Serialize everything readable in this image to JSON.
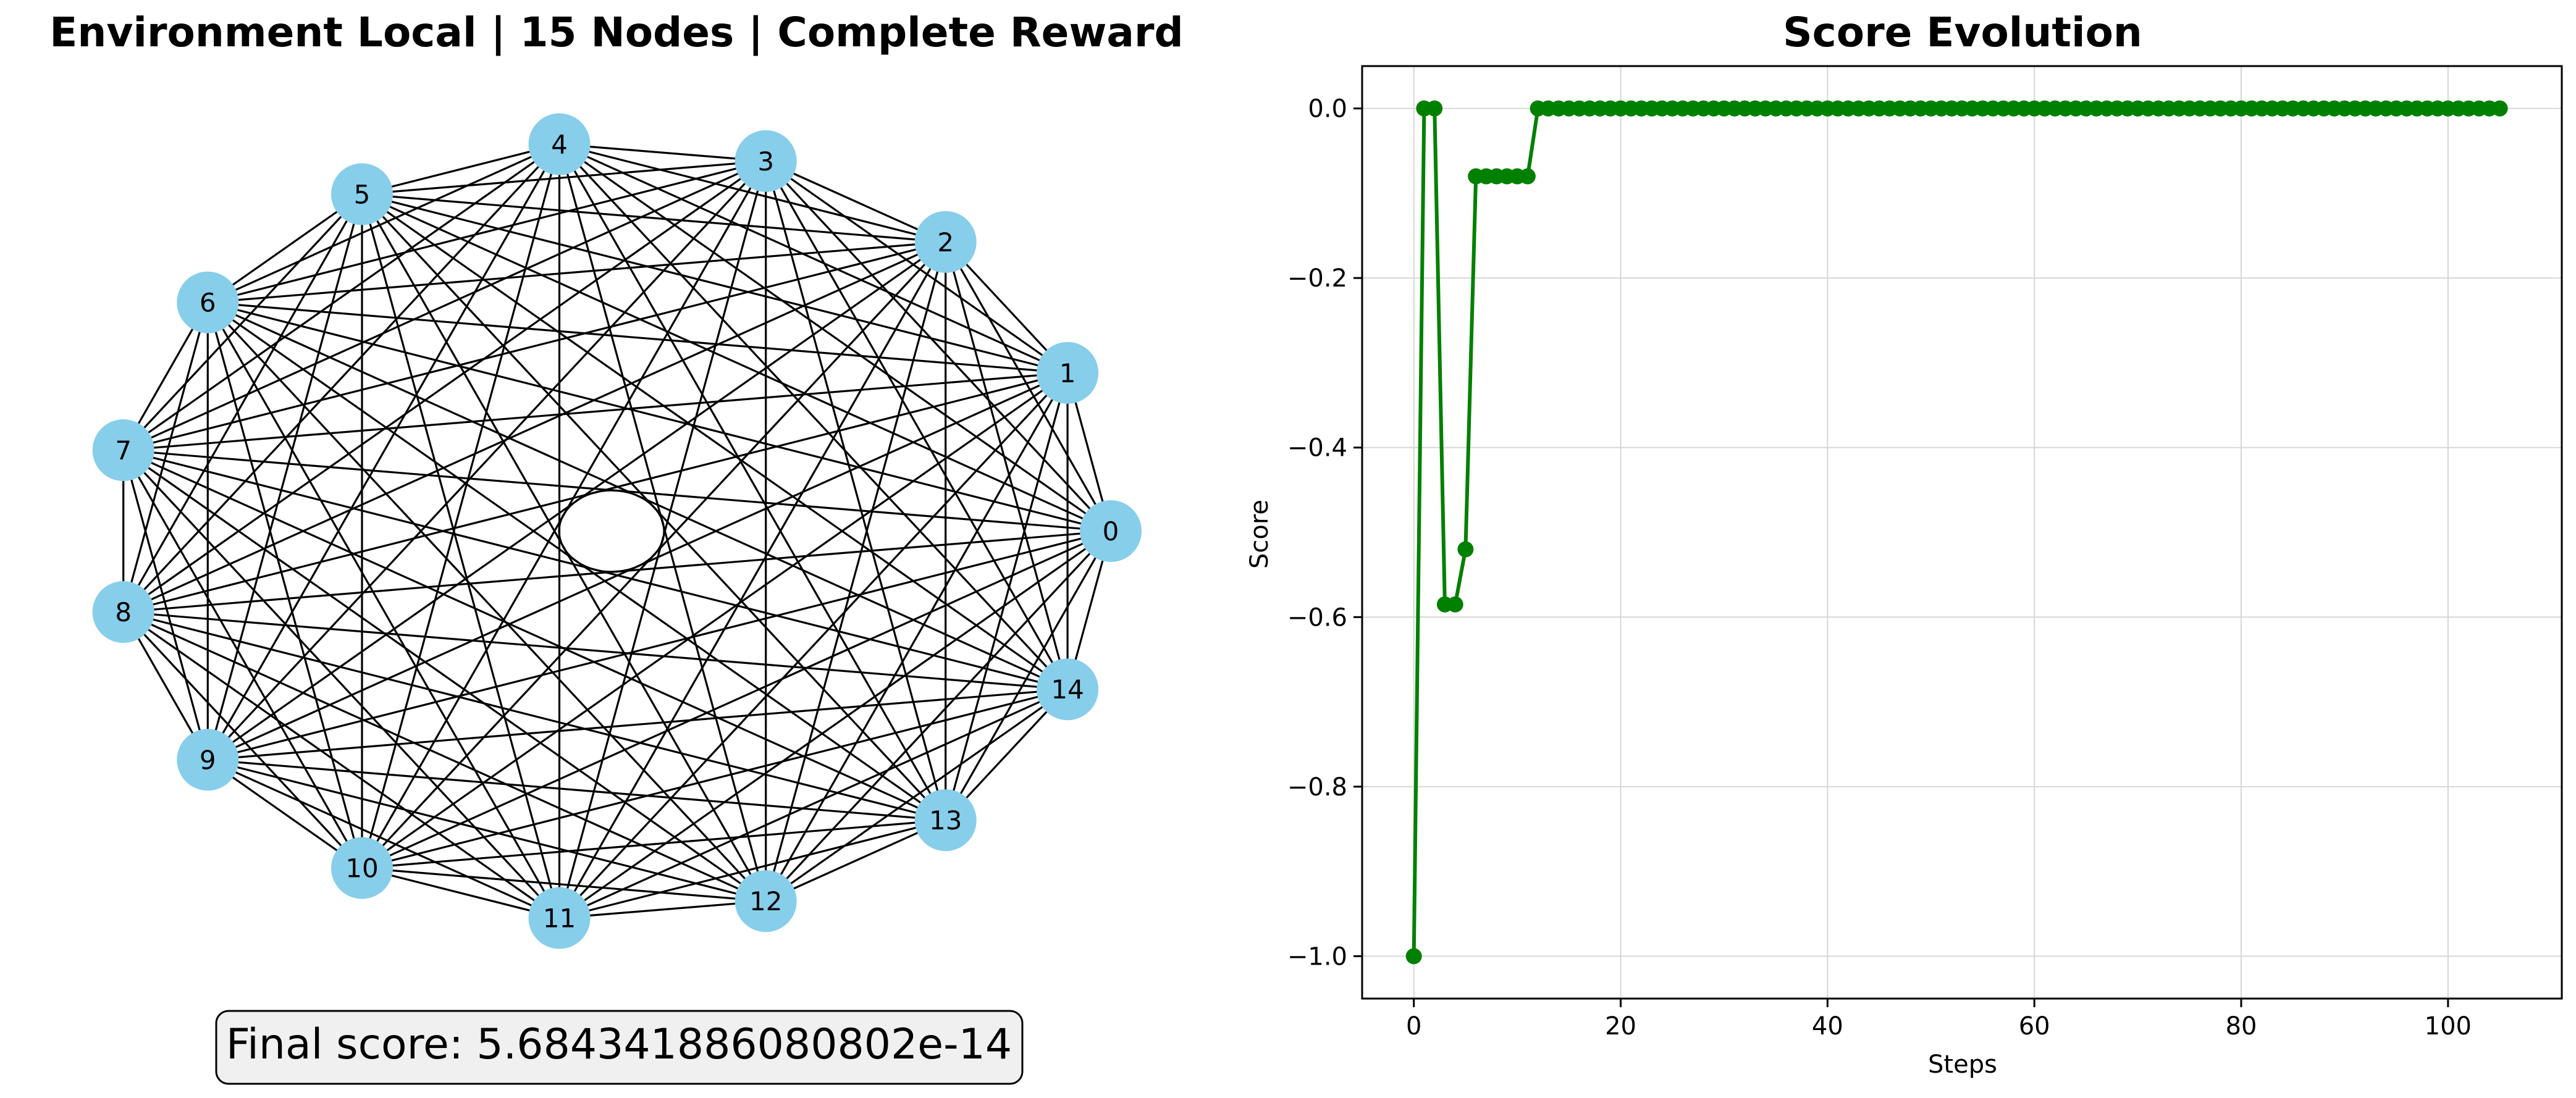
{
  "graph_panel": {
    "title": "Environment Local | 15 Nodes | Complete Reward",
    "node_color": "#87ceeb",
    "edge_color": "#000000",
    "nodes": [
      "0",
      "1",
      "2",
      "3",
      "4",
      "5",
      "6",
      "7",
      "8",
      "9",
      "10",
      "11",
      "12",
      "13",
      "14"
    ],
    "edges": "complete graph (all node pairs connected), plus a self-loop on node 0",
    "final_score_text": "Final score: 5.684341886080802e-14"
  },
  "chart_data": {
    "type": "line",
    "title": "Score Evolution",
    "xlabel": "Steps",
    "ylabel": "Score",
    "xlim": [
      -5,
      111
    ],
    "ylim": [
      -1.05,
      0.05
    ],
    "x_ticks": [
      0,
      20,
      40,
      60,
      80,
      100
    ],
    "y_ticks": [
      0.0,
      -0.2,
      -0.4,
      -0.6,
      -0.8,
      -1.0
    ],
    "x_tick_labels": [
      "0",
      "20",
      "40",
      "60",
      "80",
      "100"
    ],
    "y_tick_labels": [
      "0.0",
      "−0.2",
      "−0.4",
      "−0.6",
      "−0.8",
      "−1.0"
    ],
    "grid": true,
    "line_color": "#008000",
    "marker": "circle",
    "series": [
      {
        "x": [
          0,
          1,
          2,
          3,
          4,
          5,
          6,
          7,
          8,
          9,
          10,
          11,
          12,
          13,
          14,
          15,
          16,
          17,
          18,
          19,
          20,
          21,
          22,
          23,
          24,
          25,
          26,
          27,
          28,
          29,
          30,
          31,
          32,
          33,
          34,
          35,
          36,
          37,
          38,
          39,
          40,
          41,
          42,
          43,
          44,
          45,
          46,
          47,
          48,
          49,
          50,
          51,
          52,
          53,
          54,
          55,
          56,
          57,
          58,
          59,
          60,
          61,
          62,
          63,
          64,
          65,
          66,
          67,
          68,
          69,
          70,
          71,
          72,
          73,
          74,
          75,
          76,
          77,
          78,
          79,
          80,
          81,
          82,
          83,
          84,
          85,
          86,
          87,
          88,
          89,
          90,
          91,
          92,
          93,
          94,
          95,
          96,
          97,
          98,
          99,
          100,
          101,
          102,
          103,
          104,
          105
        ],
        "y": [
          -1.0,
          0.0,
          0.0,
          -0.585,
          -0.585,
          -0.52,
          -0.08,
          -0.08,
          -0.08,
          -0.08,
          -0.08,
          -0.08,
          0,
          0,
          0,
          0,
          0,
          0,
          0,
          0,
          0,
          0,
          0,
          0,
          0,
          0,
          0,
          0,
          0,
          0,
          0,
          0,
          0,
          0,
          0,
          0,
          0,
          0,
          0,
          0,
          0,
          0,
          0,
          0,
          0,
          0,
          0,
          0,
          0,
          0,
          0,
          0,
          0,
          0,
          0,
          0,
          0,
          0,
          0,
          0,
          0,
          0,
          0,
          0,
          0,
          0,
          0,
          0,
          0,
          0,
          0,
          0,
          0,
          0,
          0,
          0,
          0,
          0,
          0,
          0,
          0,
          0,
          0,
          0,
          0,
          0,
          0,
          0,
          0,
          0,
          0,
          0,
          0,
          0,
          0,
          0,
          0,
          0,
          0,
          0,
          0,
          0,
          0,
          0,
          0,
          0
        ]
      }
    ]
  }
}
